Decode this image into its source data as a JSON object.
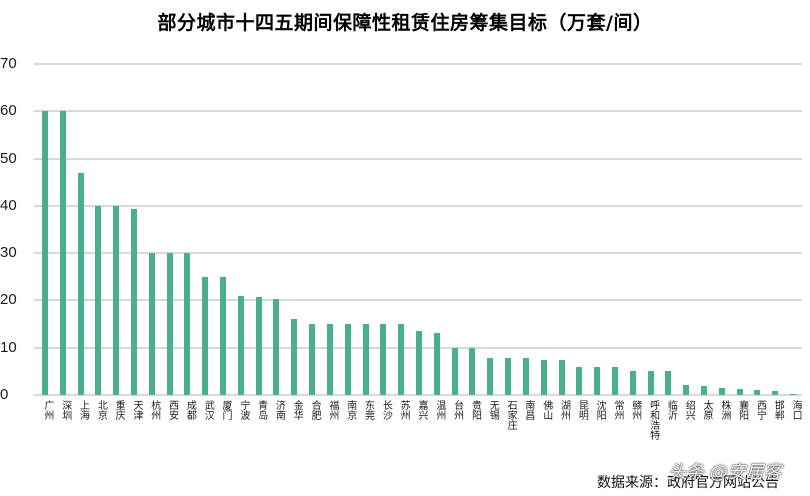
{
  "chart_data": {
    "type": "bar",
    "title": "部分城市十四五期间保障性租赁住房筹集目标（万套/间）",
    "xlabel": "",
    "ylabel": "",
    "ylim": [
      0,
      70
    ],
    "yticks": [
      0,
      10,
      20,
      30,
      40,
      50,
      60,
      70
    ],
    "grid": true,
    "legend": null,
    "bar_color": "#4aaf8c",
    "categories": [
      "广州",
      "深圳",
      "上海",
      "北京",
      "重庆",
      "天津",
      "杭州",
      "西安",
      "成都",
      "武汉",
      "厦门",
      "宁波",
      "青岛",
      "济南",
      "金华",
      "合肥",
      "福州",
      "南京",
      "东莞",
      "长沙",
      "苏州",
      "嘉兴",
      "温州",
      "台州",
      "贵阳",
      "无锡",
      "石家庄",
      "南昌",
      "佛山",
      "湖州",
      "昆明",
      "沈阳",
      "常州",
      "赣州",
      "呼和浩特",
      "临沂",
      "绍兴",
      "太原",
      "株洲",
      "襄阳",
      "西宁",
      "邯郸",
      "海口"
    ],
    "values": [
      60,
      60,
      47,
      40,
      40,
      39.4,
      30,
      30,
      30,
      25,
      25,
      21,
      20.8,
      20.4,
      16,
      15,
      15,
      15,
      15,
      15,
      15,
      13.6,
      13.2,
      10,
      10,
      7.9,
      7.9,
      7.9,
      7.5,
      7.5,
      6,
      6,
      6,
      5,
      5,
      5,
      2.2,
      2,
      1.5,
      1.3,
      1,
      0.8,
      0.3
    ]
  },
  "header": {
    "title": "部分城市十四五期间保障性租赁住房筹集目标（万套/间）"
  },
  "footer": {
    "source": "数据来源：政府官方网站公告",
    "watermark": "头条 @安居客"
  }
}
